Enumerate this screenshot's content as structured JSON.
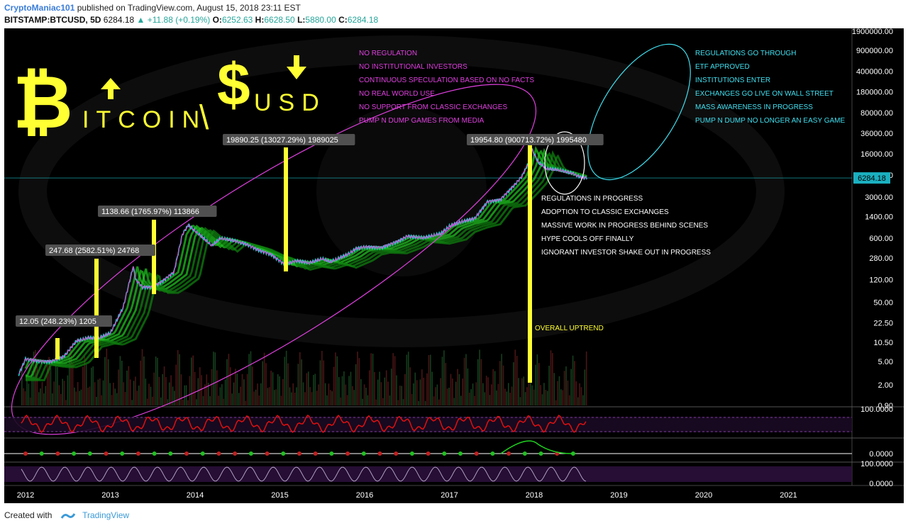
{
  "header": {
    "author": "CryptoManiac101",
    "published": "published on TradingView.com, August 15, 2018 23:11 EST",
    "symbol": "BITSTAMP:BTCUSD, 5D",
    "last": "6284.18",
    "change": "▲ +11.88 (+0.19%)",
    "o_label": "O:",
    "o": "6252.63",
    "h_label": "H:",
    "h": "6628.50",
    "l_label": "L:",
    "l": "5880.00",
    "c_label": "C:",
    "c": "6284.18"
  },
  "footer": {
    "created": "Created with",
    "brand": "TradingView"
  },
  "title_art": {
    "b_glyph": "₿",
    "itcoin": "ITCOIN",
    "slash": "\\",
    "dollar": "$",
    "usd": "USD"
  },
  "left_notes": [
    "NO REGULATION",
    "NO INSTITUTIONAL INVESTORS",
    "CONTINUOUS SPECULATION BASED ON NO FACTS",
    "NO REAL WORLD USE",
    "NO SUPPORT FROM CLASSIC EXCHANGES",
    "PUMP N DUMP GAMES FROM MEDIA"
  ],
  "right_notes": [
    "REGULATIONS GO THROUGH",
    "ETF APPROVED",
    "INSTITUTIONS ENTER",
    "EXCHANGES GO LIVE ON WALL STREET",
    "MASS AWARENESS IN PROGRESS",
    "PUMP N DUMP NO LONGER AN EASY GAME"
  ],
  "center_notes": [
    "REGULATIONS IN PROGRESS",
    "ADOPTION TO CLASSIC EXCHANGES",
    "MASSIVE WORK IN PROGRESS BEHIND SCENES",
    "HYPE COOLS OFF FINALLY",
    "IGNORANT INVESTOR SHAKE OUT IN PROGRESS"
  ],
  "overall_label": "OVERALL UPTREND",
  "measure_labels": [
    "12.05 (248.23%) 1205",
    "247.68 (2582.51%) 24768",
    "1138.66 (1765.97%) 113866",
    "19890.25 (13027.29%) 1989025",
    "19954.80 (900713.72%) 1995480"
  ],
  "colors": {
    "background": "#000000",
    "yellow": "#ffff33",
    "magenta": "#e040e0",
    "cyan": "#40e0f0",
    "white": "#ffffff",
    "rsi_red": "#e01010",
    "ribbon_green": "#1fbf1f",
    "ribbon_red": "#cc2020"
  },
  "chart_data": {
    "type": "line",
    "title": "BITSTAMP:BTCUSD, 5D",
    "scale": "log",
    "x": [
      2011.92,
      2012.0,
      2012.1,
      2012.2,
      2012.3,
      2012.45,
      2012.6,
      2012.75,
      2012.85,
      2013.0,
      2013.15,
      2013.27,
      2013.3,
      2013.38,
      2013.5,
      2013.6,
      2013.75,
      2013.85,
      2013.92,
      2014.0,
      2014.1,
      2014.2,
      2014.3,
      2014.45,
      2014.6,
      2014.75,
      2014.9,
      2015.05,
      2015.2,
      2015.35,
      2015.5,
      2015.6,
      2015.8,
      2015.9,
      2016.0,
      2016.2,
      2016.4,
      2016.5,
      2016.7,
      2016.9,
      2017.0,
      2017.15,
      2017.3,
      2017.45,
      2017.6,
      2017.75,
      2017.85,
      2017.93,
      2017.97,
      2018.05,
      2018.15,
      2018.3,
      2018.45,
      2018.55,
      2018.62
    ],
    "series": [
      {
        "values": [
          3,
          5.5,
          5.2,
          5,
          5,
          6,
          11,
          12.5,
          12,
          15,
          40,
          200,
          120,
          90,
          90,
          110,
          160,
          700,
          1000,
          800,
          600,
          450,
          600,
          550,
          480,
          380,
          320,
          220,
          250,
          230,
          270,
          240,
          320,
          400,
          430,
          420,
          540,
          650,
          610,
          720,
          960,
          1150,
          1300,
          2500,
          2700,
          4500,
          6500,
          11000,
          19500,
          11500,
          9000,
          8500,
          7500,
          6500,
          6284
        ]
      }
    ],
    "ylim": [
      0.9,
      1900000
    ],
    "y_tick_labels": [
      "1900000.00",
      "900000.00",
      "400000.00",
      "180000.00",
      "80000.00",
      "36000.00",
      "16000.00",
      "7000.00",
      "3000.00",
      "1400.00",
      "600.00",
      "280.00",
      "120.00",
      "50.00",
      "22.50",
      "10.50",
      "5.00",
      "2.00",
      "0.90"
    ],
    "x_tick_labels": [
      "2012",
      "2013",
      "2014",
      "2015",
      "2016",
      "2017",
      "2018",
      "2019",
      "2020",
      "2021"
    ],
    "last_price_label": "6284.18",
    "rsi_axis_label": "100.0000",
    "macd_axis_label": "0.0000",
    "stoch_axis_labels": [
      "100.0000",
      "0.0000"
    ]
  }
}
